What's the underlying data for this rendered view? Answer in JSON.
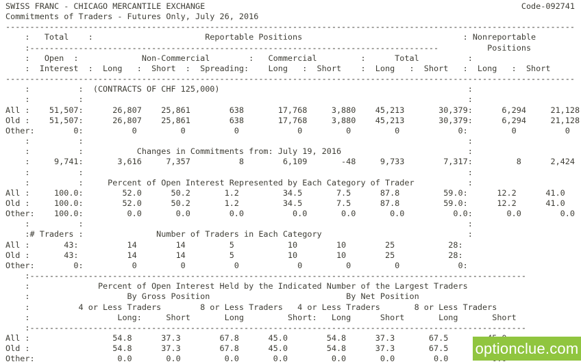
{
  "meta": {
    "market": "SWISS FRANC",
    "exchange": "CHICAGO MERCANTILE EXCHANGE",
    "report_type": "Commitments of Traders - Futures Only",
    "report_date": "July 26, 2016",
    "cftc_code": "Code-092741",
    "contract_unit": "(CONTRACTS OF CHF 125,000)",
    "changes_from_date": "July 19, 2016",
    "text_color": "#3d3c34",
    "background_color": "#ffffff"
  },
  "report": {
    "lines": [
      "SWISS FRANC - CHICAGO MERCANTILE EXCHANGE                                                                 Code-092741",
      "Commitments of Traders - Futures Only, July 26, 2016",
      "---------------------------------------------------------------------------------------------------------------------",
      "    :   Total    :                       Reportable Positions                                 : Nonreportable",
      "    :------------------------------------------------------------------------------------          Positions",
      "    :   Open  :             Non-Commercial        :   Commercial         :      Total          :",
      "    :  Interest  :  Long   :  Short  :  Spreading:    Long   :  Short    :  Long   :  Short   :  Long   :  Short",
      "---------------------------------------------------------------------------------------------------------------------",
      "    :          :  (CONTRACTS OF CHF 125,000)                                                   :",
      "    :          :                                                                               :",
      "All :    51,507:      26,807    25,861        638       17,768     3,880    45,213       30,379:      6,294     21,128",
      "Old :    51,507:      26,807    25,861        638       17,768     3,880    45,213       30,379:      6,294     21,128",
      "Other:        0:          0         0          0            0         0         0            0:         0          0",
      "    :          :                                                                               :",
      "    :          :           Changes in Commitments from: July 19, 2016                          :",
      "    :     9,741:       3,616     7,357          8        6,109       -48     9,733        7,317:         8      2,424",
      "    :          :                                                                               :",
      "    :          :     Percent of Open Interest Represented by Each Category of Trader           :",
      "All :     100.0:        52.0      50.2       1.2         34.5       7.5      87.8         59.0:      12.2      41.0",
      "Old :     100.0:        52.0      50.2       1.2         34.5       7.5      87.8         59.0:      12.2      41.0",
      "Other:    100.0:         0.0       0.0        0.0          0.0       0.0       0.0          0.0:       0.0        0.0",
      "    :          :                                                                               :",
      "    :# Traders :               Number of Traders in Each Category                              :",
      "All :       43:          14        14         5           10        10        25           28:",
      "Old :       43:          14        14         5           10        10        25           28:",
      "Other:        0:          0         0          0            0         0         0            0:",
      "    :------------------------------------------------------------------------------------------------------",
      "    :              Percent of Open Interest Held by the Indicated Number of the Largest Traders",
      "    :                    By Gross Position                            By Net Position",
      "    :          4 or Less Traders        8 or Less Traders   4 or Less Traders       8 or Less Traders",
      "    :                  Long:     Short       Long         Short:   Long      Short       Long       Short",
      "    :------------------------------------------------------------------------------------------------------",
      "All :                 54.8      37.3        67.8      45.0        54.8      37.3       67.5        45.0",
      "Old :                 54.8      37.3        67.8      45.0        54.8      37.3       67.5        45.0",
      "Other:                 0.0       0.0         0.0       0.0         0.0       0.0        0.0         0.0"
    ]
  },
  "watermark": {
    "text": "optionclue.com",
    "background_color": "#90c53f",
    "text_color": "#ffffff"
  }
}
